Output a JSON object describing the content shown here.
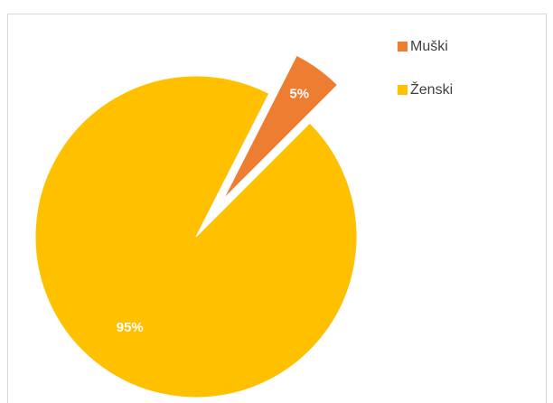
{
  "chart_data": {
    "type": "pie",
    "categories": [
      "Muški",
      "Ženski"
    ],
    "values": [
      5,
      95
    ],
    "value_labels": [
      "5%",
      "95%"
    ],
    "colors": [
      "#ed7d31",
      "#ffc000"
    ],
    "legend": "top-right"
  }
}
